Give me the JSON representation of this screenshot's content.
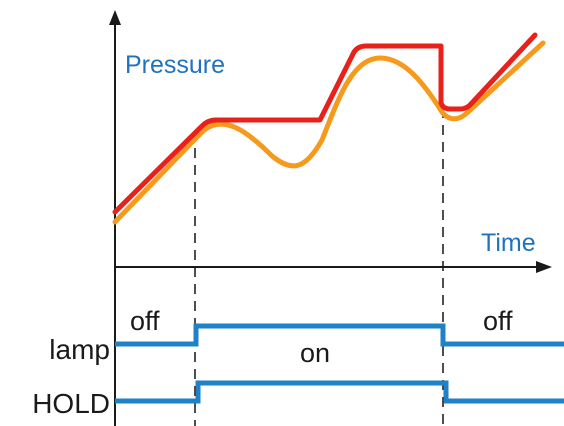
{
  "diagram": {
    "y_axis_label": "Pressure",
    "x_axis_label": "Time",
    "signals": [
      {
        "name": "lamp",
        "states": [
          "off",
          "on",
          "off"
        ]
      },
      {
        "name": "HOLD",
        "states": [
          "",
          "",
          ""
        ]
      }
    ]
  },
  "colors": {
    "axis": "#1a1a1a",
    "held_curve": "#e8211b",
    "actual_curve": "#f59a1c",
    "signal": "#1f82c8",
    "label_blue": "#1f72c0",
    "dashed": "#222222"
  }
}
